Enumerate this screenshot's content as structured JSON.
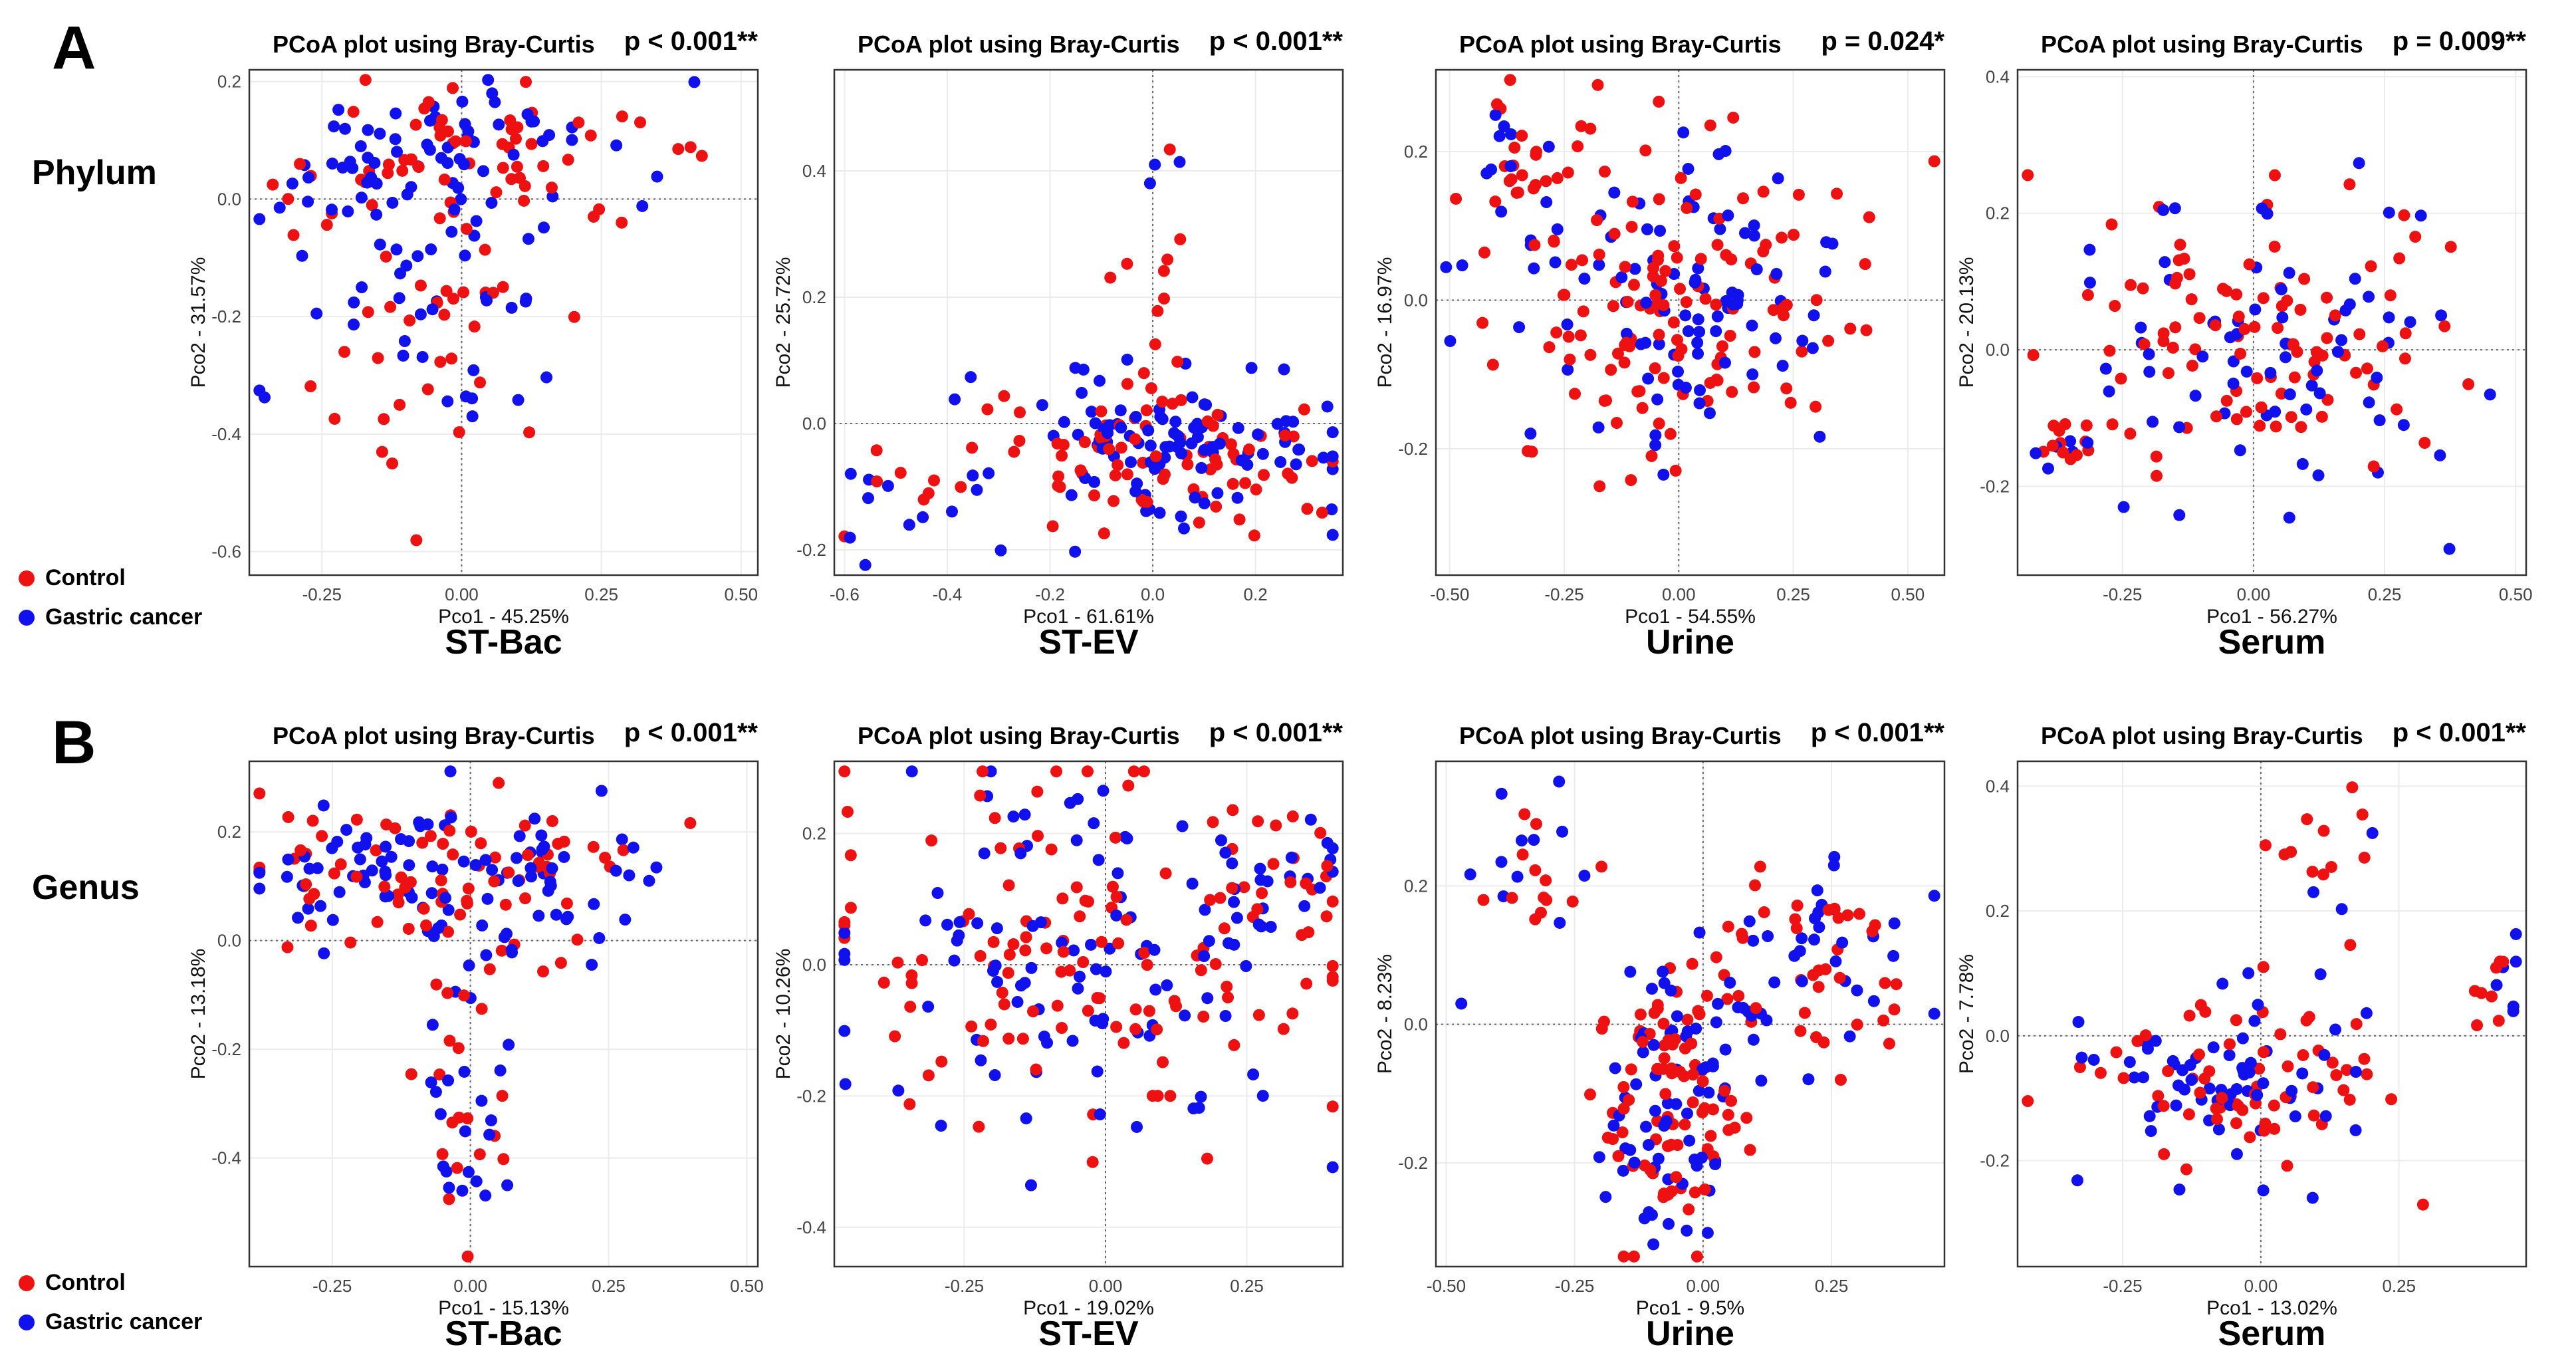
{
  "figure": {
    "panel_a_letter": "A",
    "panel_b_letter": "B",
    "row_a_label": "Phylum",
    "row_b_label": "Genus",
    "legend": [
      {
        "label": "Control",
        "color": "#ee1111"
      },
      {
        "label": "Gastric cancer",
        "color": "#1111ee"
      }
    ]
  },
  "colors": {
    "control": "#ee1111",
    "cancer": "#1111ee",
    "grid": "#ebebeb",
    "frame": "#333333"
  },
  "chart_data": [
    {
      "id": "a1",
      "type": "scatter",
      "row": 0,
      "col": 0,
      "title": "PCoA plot using Bray-Curtis",
      "pvalue": "p < 0.001**",
      "sample": "ST-Bac",
      "xlabel": "Pco1 - 45.25%",
      "ylabel": "Pco2 - 31.57%",
      "xlim": [
        -0.38,
        0.53
      ],
      "ylim": [
        -0.64,
        0.22
      ],
      "xticks": [
        -0.25,
        0,
        0.25,
        0.5
      ],
      "xtick_labels": [
        "-0.25",
        "0.00",
        "0.25",
        "0.50"
      ],
      "yticks": [
        -0.6,
        -0.4,
        -0.2,
        0,
        0.2
      ],
      "ytick_labels": [
        "-0.6",
        "-0.4",
        "-0.2",
        "0.0",
        "0.2"
      ],
      "seed": 11,
      "clusters": [
        {
          "cx": 0.0,
          "cy": 0.08,
          "sx": 0.18,
          "sy": 0.06,
          "n": 120
        },
        {
          "cx": -0.05,
          "cy": -0.12,
          "sx": 0.14,
          "sy": 0.12,
          "n": 70
        },
        {
          "cx": -0.04,
          "cy": -0.4,
          "sx": 0.05,
          "sy": 0.1,
          "n": 16
        }
      ],
      "ctrl_frac": 0.5
    },
    {
      "id": "a2",
      "type": "scatter",
      "row": 0,
      "col": 1,
      "title": "PCoA plot using Bray-Curtis",
      "pvalue": "p < 0.001**",
      "sample": "ST-EV",
      "xlabel": "Pco1 - 61.61%",
      "ylabel": "Pco2 - 25.72%",
      "xlim": [
        -0.62,
        0.37
      ],
      "ylim": [
        -0.24,
        0.56
      ],
      "xticks": [
        -0.6,
        -0.4,
        -0.2,
        0,
        0.2
      ],
      "xtick_labels": [
        "-0.6",
        "-0.4",
        "-0.2",
        "0.0",
        "0.2"
      ],
      "yticks": [
        -0.2,
        0,
        0.2,
        0.4
      ],
      "ytick_labels": [
        "-0.2",
        "0.0",
        "0.2",
        "0.4"
      ],
      "seed": 23,
      "clusters": [
        {
          "cx": 0.03,
          "cy": -0.05,
          "sx": 0.17,
          "sy": 0.06,
          "n": 190
        },
        {
          "cx": 0.0,
          "cy": 0.28,
          "sx": 0.03,
          "sy": 0.12,
          "n": 14
        },
        {
          "cx": -0.48,
          "cy": -0.14,
          "sx": 0.05,
          "sy": 0.04,
          "n": 14
        }
      ],
      "ctrl_frac": 0.5
    },
    {
      "id": "a3",
      "type": "scatter",
      "row": 0,
      "col": 2,
      "title": "PCoA plot using Bray-Curtis",
      "pvalue": "p = 0.024*",
      "sample": "Urine",
      "xlabel": "Pco1 - 54.55%",
      "ylabel": "Pco2 - 16.97%",
      "xlim": [
        -0.53,
        0.58
      ],
      "ylim": [
        -0.37,
        0.31
      ],
      "xticks": [
        -0.5,
        -0.25,
        0,
        0.25,
        0.5
      ],
      "xtick_labels": [
        "-0.50",
        "-0.25",
        "0.00",
        "0.25",
        "0.50"
      ],
      "yticks": [
        -0.2,
        0,
        0.2
      ],
      "ytick_labels": [
        "-0.2",
        "0.0",
        "0.2"
      ],
      "seed": 37,
      "clusters": [
        {
          "cx": 0.0,
          "cy": 0.0,
          "sx": 0.2,
          "sy": 0.11,
          "n": 230
        },
        {
          "cx": -0.35,
          "cy": 0.18,
          "sx": 0.06,
          "sy": 0.05,
          "n": 25
        }
      ],
      "ctrl_frac": 0.55
    },
    {
      "id": "a4",
      "type": "scatter",
      "row": 0,
      "col": 3,
      "title": "PCoA plot using Bray-Curtis",
      "pvalue": "p = 0.009**",
      "sample": "Serum",
      "xlabel": "Pco1 - 56.27%",
      "ylabel": "Pco2 - 20.13%",
      "xlim": [
        -0.45,
        0.52
      ],
      "ylim": [
        -0.33,
        0.41
      ],
      "xticks": [
        -0.25,
        0,
        0.25,
        0.5
      ],
      "xtick_labels": [
        "-0.25",
        "0.00",
        "0.25",
        "0.50"
      ],
      "yticks": [
        -0.2,
        0,
        0.2,
        0.4
      ],
      "ytick_labels": [
        "-0.2",
        "0.0",
        "0.2",
        "0.4"
      ],
      "seed": 41,
      "clusters": [
        {
          "cx": 0.0,
          "cy": 0.02,
          "sx": 0.18,
          "sy": 0.11,
          "n": 170
        },
        {
          "cx": -0.37,
          "cy": -0.14,
          "sx": 0.03,
          "sy": 0.02,
          "n": 16
        }
      ],
      "ctrl_frac": 0.55
    },
    {
      "id": "b1",
      "type": "scatter",
      "row": 1,
      "col": 0,
      "title": "PCoA plot using Bray-Curtis",
      "pvalue": "p < 0.001**",
      "sample": "ST-Bac",
      "xlabel": "Pco1 - 15.13%",
      "ylabel": "Pco2 - 13.18%",
      "xlim": [
        -0.4,
        0.52
      ],
      "ylim": [
        -0.6,
        0.33
      ],
      "xticks": [
        -0.25,
        0,
        0.25,
        0.5
      ],
      "xtick_labels": [
        "-0.25",
        "0.00",
        "0.25",
        "0.50"
      ],
      "yticks": [
        -0.4,
        -0.2,
        0,
        0.2
      ],
      "ytick_labels": [
        "-0.4",
        "-0.2",
        "0.0",
        "0.2"
      ],
      "seed": 53,
      "clusters": [
        {
          "cx": -0.05,
          "cy": 0.12,
          "sx": 0.2,
          "sy": 0.08,
          "n": 180
        },
        {
          "cx": 0.0,
          "cy": -0.3,
          "sx": 0.05,
          "sy": 0.12,
          "n": 40
        }
      ],
      "ctrl_frac": 0.5
    },
    {
      "id": "b2",
      "type": "scatter",
      "row": 1,
      "col": 1,
      "title": "PCoA plot using Bray-Curtis",
      "pvalue": "p < 0.001**",
      "sample": "ST-EV",
      "xlabel": "Pco1 - 19.02%",
      "ylabel": "Pco2 - 10.26%",
      "xlim": [
        -0.48,
        0.42
      ],
      "ylim": [
        -0.46,
        0.31
      ],
      "xticks": [
        -0.25,
        0,
        0.25
      ],
      "xtick_labels": [
        "-0.25",
        "0.00",
        "0.25"
      ],
      "yticks": [
        -0.4,
        -0.2,
        0,
        0.2
      ],
      "ytick_labels": [
        "-0.4",
        "-0.2",
        "0.0",
        "0.2"
      ],
      "seed": 67,
      "clusters": [
        {
          "cx": -0.05,
          "cy": 0.0,
          "sx": 0.2,
          "sy": 0.13,
          "n": 220
        },
        {
          "cx": 0.3,
          "cy": 0.12,
          "sx": 0.06,
          "sy": 0.05,
          "n": 35
        }
      ],
      "ctrl_frac": 0.5
    },
    {
      "id": "b3",
      "type": "scatter",
      "row": 1,
      "col": 2,
      "title": "PCoA plot using Bray-Curtis",
      "pvalue": "p < 0.001**",
      "sample": "Urine",
      "xlabel": "Pco1 - 9.5%",
      "ylabel": "Pco2 - 8.23%",
      "xlim": [
        -0.52,
        0.47
      ],
      "ylim": [
        -0.35,
        0.38
      ],
      "xticks": [
        -0.5,
        -0.25,
        0,
        0.25
      ],
      "xtick_labels": [
        "-0.50",
        "-0.25",
        "0.00",
        "0.25"
      ],
      "yticks": [
        -0.2,
        0,
        0.2
      ],
      "ytick_labels": [
        "-0.2",
        "0.0",
        "0.2"
      ],
      "seed": 79,
      "clusters": [
        {
          "cx": -0.05,
          "cy": -0.12,
          "sx": 0.07,
          "sy": 0.1,
          "n": 150
        },
        {
          "cx": 0.2,
          "cy": 0.08,
          "sx": 0.12,
          "sy": 0.08,
          "n": 80
        },
        {
          "cx": -0.35,
          "cy": 0.24,
          "sx": 0.08,
          "sy": 0.06,
          "n": 25
        }
      ],
      "ctrl_frac": 0.55
    },
    {
      "id": "b4",
      "type": "scatter",
      "row": 1,
      "col": 3,
      "title": "PCoA plot using Bray-Curtis",
      "pvalue": "p < 0.001**",
      "sample": "Serum",
      "xlabel": "Pco1 - 13.02%",
      "ylabel": "Pco2 - 7.78%",
      "xlim": [
        -0.44,
        0.48
      ],
      "ylim": [
        -0.37,
        0.44
      ],
      "xticks": [
        -0.25,
        0,
        0.25
      ],
      "xtick_labels": [
        "-0.25",
        "0.00",
        "0.25"
      ],
      "yticks": [
        -0.2,
        0,
        0.2,
        0.4
      ],
      "ytick_labels": [
        "-0.2",
        "0.0",
        "0.2",
        "0.4"
      ],
      "seed": 97,
      "clusters": [
        {
          "cx": -0.05,
          "cy": -0.08,
          "sx": 0.14,
          "sy": 0.08,
          "n": 130
        },
        {
          "cx": 0.12,
          "cy": 0.3,
          "sx": 0.05,
          "sy": 0.07,
          "n": 14
        },
        {
          "cx": 0.43,
          "cy": 0.08,
          "sx": 0.03,
          "sy": 0.05,
          "n": 14
        }
      ],
      "ctrl_frac": 0.55
    }
  ]
}
